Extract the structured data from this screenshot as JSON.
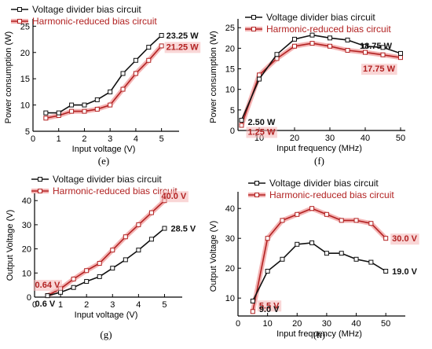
{
  "colors": {
    "black_series": "#111111",
    "red_series": "#b22222",
    "red_highlight": "#f4b4b4"
  },
  "chart_data": [
    {
      "id": "e",
      "type": "line",
      "caption": "(e)",
      "xlabel": "Input voltage (V)",
      "ylabel": "Power consumption (W)",
      "xlim": [
        0,
        5.5
      ],
      "ylim": [
        5,
        25.5
      ],
      "xticks": [
        0,
        1,
        2,
        3,
        4,
        5
      ],
      "yticks": [
        5,
        10,
        15,
        20,
        25
      ],
      "legend": [
        "Voltage divider bias circuit",
        "Harmonic-reduced bias circuit"
      ],
      "series": [
        {
          "name": "Voltage divider bias circuit",
          "color": "#111111",
          "x": [
            0.5,
            1,
            1.5,
            2,
            2.5,
            3,
            3.5,
            4,
            4.5,
            5
          ],
          "y": [
            8.5,
            8.5,
            10,
            10,
            11,
            12.5,
            16,
            18.5,
            21,
            23.25
          ]
        },
        {
          "name": "Harmonic-reduced bias circuit",
          "color": "#b22222",
          "x": [
            0.5,
            1,
            1.5,
            2,
            2.5,
            3,
            3.5,
            4,
            4.5,
            5
          ],
          "y": [
            7.5,
            8,
            8.8,
            8.8,
            9.2,
            10,
            13,
            16,
            18.5,
            21.25
          ]
        }
      ],
      "annotations": [
        {
          "text": "23.25 W",
          "series": 0,
          "x": 5,
          "y": 23.25,
          "color": "#111111",
          "dx": 6,
          "dy": 0
        },
        {
          "text": "21.25 W",
          "series": 1,
          "x": 5,
          "y": 21.25,
          "color": "#b22222",
          "dx": 6,
          "dy": 1
        }
      ]
    },
    {
      "id": "f",
      "type": "line",
      "caption": "(f)",
      "xlabel": "Input frequency (MHz)",
      "ylabel": "Power consumption (W)",
      "xlim": [
        4,
        50
      ],
      "ylim": [
        0,
        26
      ],
      "xticks": [
        10,
        20,
        30,
        40,
        50
      ],
      "yticks": [
        0,
        5,
        10,
        15,
        20,
        25
      ],
      "legend": [
        "Voltage divider bias circuit",
        "Harmonic-reduced bias circuit"
      ],
      "series": [
        {
          "name": "Voltage divider bias circuit",
          "color": "#111111",
          "x": [
            5,
            10,
            15,
            20,
            25,
            30,
            35,
            40,
            45,
            50
          ],
          "y": [
            2.5,
            12.5,
            18.5,
            22.2,
            23.2,
            22.5,
            22,
            20.5,
            20.2,
            18.75
          ]
        },
        {
          "name": "Harmonic-reduced bias circuit",
          "color": "#b22222",
          "x": [
            5,
            10,
            15,
            20,
            25,
            30,
            35,
            40,
            45,
            50
          ],
          "y": [
            1.25,
            13.5,
            17.5,
            20.5,
            21.2,
            20.5,
            19.5,
            19,
            18.4,
            17.75
          ]
        }
      ],
      "annotations": [
        {
          "text": "18.75 W",
          "series": 0,
          "x": 50,
          "y": 18.75,
          "color": "#111111",
          "dx": -52,
          "dy": -10
        },
        {
          "text": "17.75 W",
          "series": 1,
          "x": 50,
          "y": 17.75,
          "color": "#b22222",
          "dx": -48,
          "dy": 14
        },
        {
          "text": "2.50 W",
          "series": 0,
          "x": 5,
          "y": 2.5,
          "color": "#111111",
          "dx": 8,
          "dy": 2
        },
        {
          "text": "1.25 W",
          "series": 1,
          "x": 5,
          "y": 1.25,
          "color": "#b22222",
          "dx": 8,
          "dy": 8
        }
      ]
    },
    {
      "id": "g",
      "type": "line",
      "caption": "(g)",
      "xlabel": "Input voltage (V)",
      "ylabel": "Output Voltage (V)",
      "xlim": [
        0,
        5.5
      ],
      "ylim": [
        0,
        43
      ],
      "xticks": [
        0,
        1,
        2,
        3,
        4,
        5
      ],
      "yticks": [
        0,
        10,
        20,
        30,
        40
      ],
      "legend": [
        "Voltage divider bias circuit",
        "Harmonic-reduced bias circuit"
      ],
      "series": [
        {
          "name": "Voltage divider bias circuit",
          "color": "#111111",
          "x": [
            0.5,
            1,
            1.5,
            2,
            2.5,
            3,
            3.5,
            4,
            4.5,
            5
          ],
          "y": [
            0.6,
            2.0,
            4.0,
            6.5,
            8.5,
            12,
            15.5,
            19.5,
            24,
            28.5
          ]
        },
        {
          "name": "Harmonic-reduced bias circuit",
          "color": "#b22222",
          "x": [
            0.5,
            1,
            1.5,
            2,
            2.5,
            3,
            3.5,
            4,
            4.5,
            5
          ],
          "y": [
            0.64,
            3.5,
            7.5,
            11,
            14,
            19.5,
            25,
            30,
            35,
            40.0
          ]
        }
      ],
      "annotations": [
        {
          "text": "40.0 V",
          "series": 1,
          "x": 5,
          "y": 40.0,
          "color": "#b22222",
          "dx": -4,
          "dy": -6
        },
        {
          "text": "28.5 V",
          "series": 0,
          "x": 5,
          "y": 28.5,
          "color": "#111111",
          "dx": 8,
          "dy": 0
        },
        {
          "text": "0.64 V",
          "series": 1,
          "x": 0.5,
          "y": 0.64,
          "color": "#b22222",
          "dx": -16,
          "dy": -14
        },
        {
          "text": "0.6 V",
          "series": 0,
          "x": 0.5,
          "y": 0.6,
          "color": "#111111",
          "dx": -16,
          "dy": 10
        }
      ]
    },
    {
      "id": "h",
      "type": "line",
      "caption": "(h)",
      "xlabel": "Input frequency (MHz)",
      "ylabel": "Output Voltage (V)",
      "xlim": [
        0,
        55
      ],
      "ylim": [
        4,
        44
      ],
      "xticks": [
        0,
        10,
        20,
        30,
        40,
        50
      ],
      "yticks": [
        10,
        20,
        30,
        40
      ],
      "legend": [
        "Voltage divider bias circuit",
        "Harmonic-reduced bias circuit"
      ],
      "series": [
        {
          "name": "Voltage divider bias circuit",
          "color": "#111111",
          "x": [
            5,
            10,
            15,
            20,
            25,
            30,
            35,
            40,
            45,
            50
          ],
          "y": [
            9.0,
            19,
            23,
            28,
            28.5,
            25,
            25,
            23,
            22,
            19.0
          ]
        },
        {
          "name": "Harmonic-reduced bias circuit",
          "color": "#b22222",
          "x": [
            5,
            10,
            15,
            20,
            25,
            30,
            35,
            40,
            45,
            50
          ],
          "y": [
            5.5,
            30,
            36,
            38,
            40,
            38,
            36,
            36,
            35,
            30.0
          ]
        }
      ],
      "annotations": [
        {
          "text": "30.0 V",
          "series": 1,
          "x": 50,
          "y": 30.0,
          "color": "#b22222",
          "dx": 8,
          "dy": 0
        },
        {
          "text": "19.0 V",
          "series": 0,
          "x": 50,
          "y": 19.0,
          "color": "#111111",
          "dx": 8,
          "dy": 0
        },
        {
          "text": "5.5 V",
          "series": 1,
          "x": 5,
          "y": 5.5,
          "color": "#b22222",
          "dx": 8,
          "dy": -8
        },
        {
          "text": "9.0 V",
          "series": 0,
          "x": 5,
          "y": 9.0,
          "color": "#111111",
          "dx": 8,
          "dy": 10
        }
      ]
    }
  ]
}
